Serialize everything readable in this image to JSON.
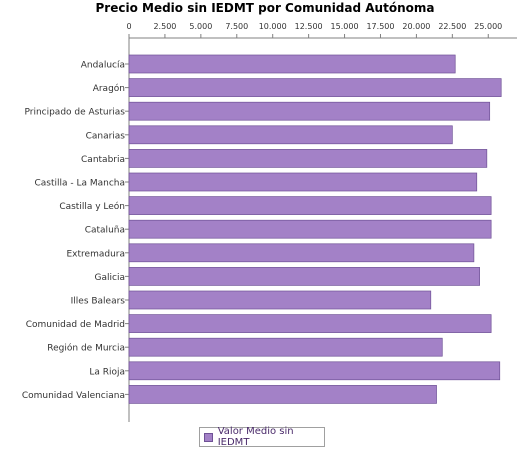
{
  "chart_data": {
    "type": "bar",
    "orientation": "horizontal",
    "title": "Precio Medio sin IEDMT por Comunidad Autónoma",
    "categories": [
      "Andalucía",
      "Aragón",
      "Principado de Asturias",
      "Canarias",
      "Cantabria",
      "Castilla - La Mancha",
      "Castilla y León",
      "Cataluña",
      "Extremadura",
      "Galicia",
      "Illes Balears",
      "Comunidad de Madrid",
      "Región de Murcia",
      "La Rioja",
      "Comunidad Valenciana"
    ],
    "series": [
      {
        "name": "Valor Medio sin IEDMT",
        "color": "#a381c7",
        "values": [
          22700,
          25900,
          25100,
          22500,
          24900,
          24200,
          25200,
          25200,
          24000,
          24400,
          21000,
          25200,
          21800,
          25800,
          21400
        ]
      }
    ],
    "xticks": [
      "0",
      "2.500",
      "5.000",
      "7.500",
      "10.000",
      "12.500",
      "15.000",
      "17.500",
      "20.000",
      "22.500",
      "25.000"
    ],
    "xlim": [
      0,
      27000
    ],
    "xaxis_position": "top",
    "grid": false,
    "legend_position": "bottom-center"
  }
}
